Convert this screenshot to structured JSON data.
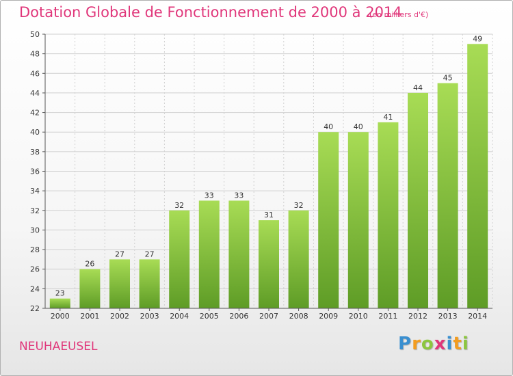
{
  "header": {
    "title": "Dotation Globale de Fonctionnement de 2000 à 2014",
    "subtitle": "(en milliers d'€)"
  },
  "footer": {
    "commune": "NEUHAEUSEL",
    "logo_letters": [
      {
        "char": "P",
        "color": "#3a8fd0"
      },
      {
        "char": "r",
        "color": "#f39c1f"
      },
      {
        "char": "o",
        "color": "#8cc63f"
      },
      {
        "char": "x",
        "color": "#e0367a"
      },
      {
        "char": "i",
        "color": "#3a8fd0"
      },
      {
        "char": "t",
        "color": "#f39c1f"
      },
      {
        "char": "i",
        "color": "#8cc63f"
      }
    ]
  },
  "colors": {
    "accent": "#e0367a",
    "bar_light": "#9dd34a",
    "bar_dark": "#62a12a",
    "grid": "#d0d0d0",
    "axis": "#555555"
  },
  "chart_data": {
    "type": "bar",
    "categories": [
      "2000",
      "2001",
      "2002",
      "2003",
      "2004",
      "2005",
      "2006",
      "2007",
      "2008",
      "2009",
      "2010",
      "2011",
      "2012",
      "2013",
      "2014"
    ],
    "values": [
      23,
      26,
      27,
      27,
      32,
      33,
      33,
      31,
      32,
      40,
      40,
      41,
      44,
      45,
      49
    ],
    "ylim": [
      22,
      50
    ],
    "yticks": [
      22,
      24,
      26,
      28,
      30,
      32,
      34,
      36,
      38,
      40,
      42,
      44,
      46,
      48,
      50
    ],
    "grid": true,
    "grid_axis": "y",
    "title": "Dotation Globale de Fonctionnement de 2000 à 2014",
    "subtitle": "(en milliers d'€)",
    "xlabel": "",
    "ylabel": ""
  }
}
